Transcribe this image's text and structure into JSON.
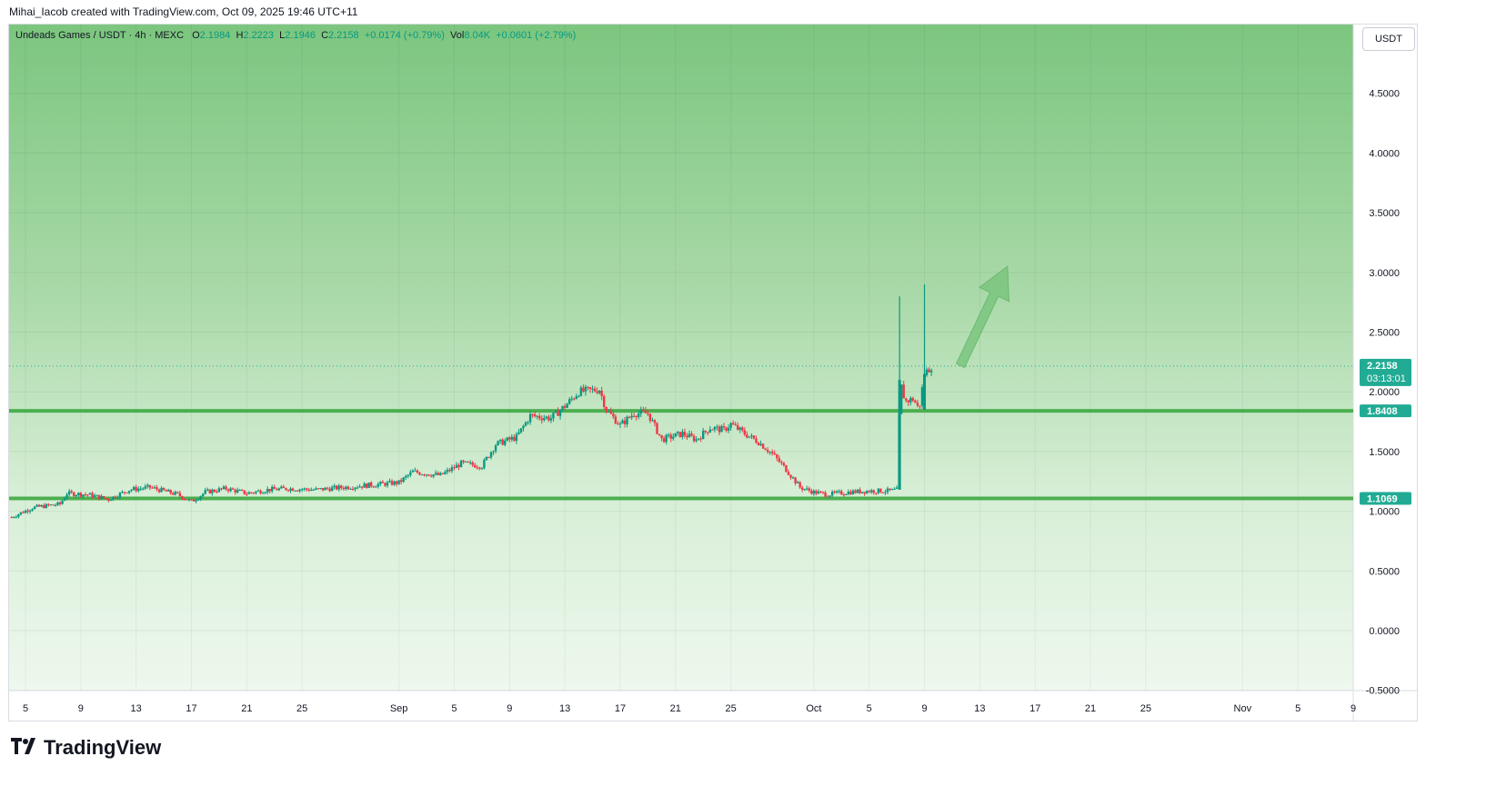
{
  "header": {
    "attribution": "Mihai_Iacob created with TradingView.com, Oct 09, 2025 19:46 UTC+11"
  },
  "legend": {
    "symbol": "Undeads Games / USDT · 4h · MEXC",
    "o_label": "O",
    "o_value": "2.1984",
    "h_label": "H",
    "h_value": "2.2223",
    "l_label": "L",
    "l_value": "2.1946",
    "c_label": "C",
    "c_value": "2.2158",
    "change": "+0.0174 (+0.79%)",
    "vol_label": "Vol",
    "vol_value": "8.04K",
    "vol_change": "+0.0601 (+2.79%)"
  },
  "currency_button": "USDT",
  "colors": {
    "up": "#089981",
    "down": "#f23645",
    "level_line": "#4caf50",
    "price_tag": "#22ab94",
    "arrow": "#7cc67f"
  },
  "footer": {
    "brand": "TradingView"
  },
  "chart_data": {
    "type": "candlestick",
    "interval": "4h",
    "ylim": [
      -0.5,
      5.0
    ],
    "y_ticks": [
      "4.5000",
      "4.0000",
      "3.5000",
      "3.0000",
      "2.5000",
      "2.0000",
      "1.5000",
      "1.0000",
      "0.5000",
      "0.0000",
      "-0.5000"
    ],
    "y_tick_values": [
      4.5,
      4.0,
      3.5,
      3.0,
      2.5,
      2.0,
      1.5,
      1.0,
      0.5,
      0.0,
      -0.5
    ],
    "x_ticks": [
      {
        "label": "5",
        "day": 5
      },
      {
        "label": "9",
        "day": 9
      },
      {
        "label": "13",
        "day": 13
      },
      {
        "label": "17",
        "day": 17
      },
      {
        "label": "21",
        "day": 21
      },
      {
        "label": "25",
        "day": 25
      },
      {
        "label": "Sep",
        "day": 32
      },
      {
        "label": "5",
        "day": 36
      },
      {
        "label": "9",
        "day": 40
      },
      {
        "label": "13",
        "day": 44
      },
      {
        "label": "17",
        "day": 48
      },
      {
        "label": "21",
        "day": 52
      },
      {
        "label": "25",
        "day": 56
      },
      {
        "label": "Oct",
        "day": 62
      },
      {
        "label": "5",
        "day": 66
      },
      {
        "label": "9",
        "day": 70
      },
      {
        "label": "13",
        "day": 74
      },
      {
        "label": "17",
        "day": 78
      },
      {
        "label": "21",
        "day": 82
      },
      {
        "label": "25",
        "day": 86
      },
      {
        "label": "Nov",
        "day": 93
      },
      {
        "label": "5",
        "day": 97
      },
      {
        "label": "9",
        "day": 101
      }
    ],
    "x_domain_days": [
      4,
      101
    ],
    "price_path": [
      [
        4.0,
        0.95
      ],
      [
        5.5,
        1.03
      ],
      [
        7.5,
        1.06
      ],
      [
        8.0,
        1.15
      ],
      [
        9.5,
        1.14
      ],
      [
        11,
        1.1
      ],
      [
        12.5,
        1.18
      ],
      [
        14,
        1.2
      ],
      [
        16,
        1.14
      ],
      [
        17,
        1.08
      ],
      [
        18,
        1.16
      ],
      [
        19.5,
        1.19
      ],
      [
        21,
        1.15
      ],
      [
        22.5,
        1.18
      ],
      [
        24,
        1.19
      ],
      [
        26,
        1.18
      ],
      [
        28,
        1.2
      ],
      [
        30,
        1.22
      ],
      [
        32,
        1.24
      ],
      [
        33,
        1.33
      ],
      [
        35,
        1.3
      ],
      [
        36.5,
        1.4
      ],
      [
        38,
        1.38
      ],
      [
        39,
        1.56
      ],
      [
        40.5,
        1.62
      ],
      [
        41.5,
        1.8
      ],
      [
        43,
        1.78
      ],
      [
        44,
        1.88
      ],
      [
        45,
        2.0
      ],
      [
        46.5,
        2.02
      ],
      [
        47,
        1.85
      ],
      [
        48,
        1.72
      ],
      [
        49,
        1.82
      ],
      [
        50,
        1.82
      ],
      [
        51,
        1.6
      ],
      [
        52.5,
        1.65
      ],
      [
        53.5,
        1.6
      ],
      [
        54.5,
        1.7
      ],
      [
        55.5,
        1.68
      ],
      [
        56,
        1.73
      ],
      [
        57,
        1.65
      ],
      [
        58,
        1.58
      ],
      [
        59,
        1.48
      ],
      [
        60,
        1.35
      ],
      [
        61,
        1.2
      ],
      [
        62,
        1.16
      ],
      [
        63,
        1.14
      ],
      [
        64.5,
        1.16
      ],
      [
        66,
        1.17
      ],
      [
        67.5,
        1.17
      ],
      [
        68.1,
        1.18
      ],
      [
        68.2,
        2.1
      ],
      [
        68.6,
        1.92
      ],
      [
        69.2,
        1.94
      ],
      [
        69.6,
        1.85
      ],
      [
        69.8,
        2.0
      ],
      [
        70,
        2.15
      ],
      [
        70.5,
        2.2158
      ]
    ],
    "spikes": [
      {
        "day": 68.2,
        "high": 2.8,
        "low": 1.18
      },
      {
        "day": 70.0,
        "high": 2.9,
        "low": 1.85
      }
    ],
    "last_price": 2.2158,
    "last_price_label": "2.2158",
    "countdown": "03:13:01",
    "levels": [
      {
        "value": 1.8408,
        "label": "1.8408"
      },
      {
        "value": 1.1069,
        "label": "1.1069"
      }
    ],
    "annotation": {
      "type": "arrow",
      "direction": "up",
      "from": [
        72.6,
        2.22
      ],
      "to": [
        76,
        3.05
      ]
    }
  }
}
